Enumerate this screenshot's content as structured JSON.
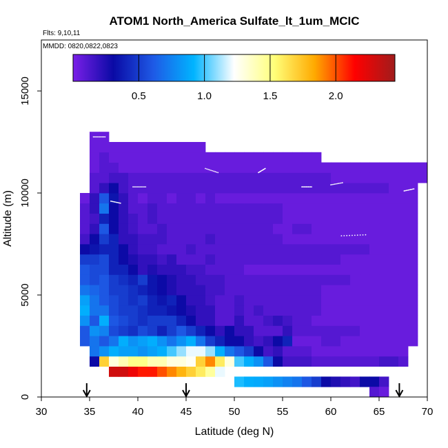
{
  "chart_data": {
    "type": "heatmap",
    "title": "ATOM1 North_America Sulfate_lt_1um_MCIC",
    "flights_note": "Flts: 9,10,11",
    "date_note": "MMDD: 0820,0822,0823",
    "xlabel": "Latitude (deg N)",
    "ylabel": "Altitude (m)",
    "xlim": [
      30,
      70
    ],
    "ylim": [
      0,
      17500
    ],
    "x_ticks": [
      "30",
      "35",
      "40",
      "45",
      "50",
      "55",
      "60",
      "65",
      "70"
    ],
    "y_ticks": [
      "0",
      "5000",
      "10000",
      "15000"
    ],
    "colorbar": {
      "range": [
        0,
        2.45
      ],
      "ticks": [
        "0.5",
        "1.0",
        "1.5",
        "2.0"
      ],
      "colors": [
        "#7a1fe8",
        "#0a0aa5",
        "#1e5ae6",
        "#00b4ff",
        "#ffffff",
        "#ffff7a",
        "#ffaa00",
        "#ff0000",
        "#a01c1c"
      ]
    },
    "arrows_latitude": [
      34.7,
      45,
      67.1
    ],
    "cell_size": {
      "lat_deg": 1,
      "alt_m": 500
    },
    "rows": [
      {
        "alt_min": 1000,
        "lat_start": 37,
        "values": [
          2.3,
          2.3,
          2.2,
          2.1,
          2.1,
          2.0,
          1.9,
          1.8,
          1.7,
          1.6,
          1.45,
          1.2
        ]
      },
      {
        "alt_min": 500,
        "lat_start": 50,
        "values": [
          0.95,
          0.9,
          0.88,
          0.85,
          0.8,
          0.75,
          0.7,
          0.6,
          0.5,
          0.3,
          0.25,
          0.2,
          0.15,
          0.3,
          0.3,
          0.15
        ]
      },
      {
        "alt_min": 0,
        "lat_start": 64,
        "values": [
          0.1,
          0.05
        ]
      },
      {
        "alt_min": 1500,
        "lat_start": 35,
        "values": [
          0.3,
          1.7,
          1.3,
          1.4,
          1.5,
          1.5,
          1.4,
          1.4,
          1.3,
          1.3,
          1.25,
          1.7,
          1.9,
          1.6,
          1.3,
          1.0,
          0.9,
          0.8,
          0.6,
          0.3,
          0.15,
          0.15,
          0.15,
          0.1,
          0.1,
          0.1,
          0.1,
          0.1,
          0.1,
          0.1,
          0.15,
          0.15,
          0.1
        ]
      },
      {
        "alt_min": 2000,
        "lat_start": 35,
        "values": [
          0.7,
          0.8,
          0.9,
          0.85,
          0.85,
          0.8,
          0.85,
          0.9,
          1.0,
          1.1,
          1.2,
          1.2,
          1.1,
          0.9,
          0.7,
          0.6,
          0.5,
          0.3,
          0.15,
          0.2,
          0.1,
          0.1,
          0.1,
          0.05,
          0.05,
          0.05,
          0.05,
          0.05,
          0.05,
          0.05,
          0.05,
          0.05,
          0.05
        ]
      },
      {
        "alt_min": 2500,
        "lat_start": 34,
        "values": [
          0.6,
          0.7,
          0.6,
          0.7,
          0.9,
          0.8,
          0.85,
          0.9,
          0.8,
          0.7,
          0.8,
          0.9,
          0.7,
          0.5,
          0.4,
          0.3,
          0.3,
          0.2,
          0.15,
          0.2,
          0.3,
          0.4,
          0.05,
          0.05,
          0.05,
          0.1,
          0.1,
          0.05,
          0.05,
          0.05,
          0.05,
          0.05,
          0.05,
          0.05,
          0.05
        ]
      },
      {
        "alt_min": 3000,
        "lat_start": 34,
        "values": [
          0.6,
          0.8,
          0.75,
          0.55,
          0.5,
          0.45,
          0.55,
          0.5,
          0.4,
          0.5,
          0.6,
          0.5,
          0.4,
          0.3,
          0.2,
          0.3,
          0.2,
          0.2,
          0.1,
          0.1,
          0.1,
          0.2,
          0.1,
          0.1,
          0.1,
          0.1,
          0.1,
          0.1,
          0.1,
          0.05,
          0.05,
          0.05,
          0.05,
          0.05,
          0.05
        ]
      },
      {
        "alt_min": 3500,
        "lat_start": 34,
        "values": [
          0.8,
          0.6,
          0.9,
          0.6,
          0.55,
          0.5,
          0.45,
          0.5,
          0.5,
          0.5,
          0.4,
          0.3,
          0.2,
          0.2,
          0.1,
          0.1,
          0.2,
          0.1,
          0.1,
          0.15,
          0.2,
          0.15,
          0.1,
          0.1,
          0.05,
          0.05,
          0.05,
          0.05,
          0.05,
          0.05,
          0.05,
          0.05,
          0.05,
          0.05,
          0.05
        ]
      },
      {
        "alt_min": 4000,
        "lat_start": 34,
        "values": [
          0.9,
          0.7,
          0.7,
          0.55,
          0.5,
          0.5,
          0.45,
          0.4,
          0.4,
          0.35,
          0.3,
          0.25,
          0.2,
          0.2,
          0.1,
          0.1,
          0.15,
          0.1,
          0.15,
          0.1,
          0.1,
          0.1,
          0.1,
          0.1,
          0.1,
          0.05,
          0.05,
          0.05,
          0.05,
          0.05,
          0.05,
          0.05,
          0.05,
          0.05,
          0.05
        ]
      },
      {
        "alt_min": 4500,
        "lat_start": 34,
        "values": [
          0.85,
          0.7,
          0.6,
          0.55,
          0.5,
          0.45,
          0.5,
          0.4,
          0.35,
          0.4,
          0.3,
          0.2,
          0.2,
          0.15,
          0.1,
          0.1,
          0.15,
          0.1,
          0.1,
          0.1,
          0.1,
          0.1,
          0.1,
          0.1,
          0.1,
          0.05,
          0.05,
          0.05,
          0.05,
          0.05,
          0.05,
          0.05,
          0.05,
          0.05,
          0.05
        ]
      },
      {
        "alt_min": 5000,
        "lat_start": 34,
        "values": [
          0.7,
          0.65,
          0.6,
          0.5,
          0.5,
          0.45,
          0.4,
          0.35,
          0.3,
          0.25,
          0.2,
          0.2,
          0.2,
          0.15,
          0.15,
          0.1,
          0.1,
          0.1,
          0.1,
          0.1,
          0.1,
          0.1,
          0.1,
          0.1,
          0.1,
          0.05,
          0.05,
          0.05,
          0.05,
          0.05,
          0.05,
          0.05,
          0.05,
          0.05,
          0.05
        ]
      },
      {
        "alt_min": 5500,
        "lat_start": 34,
        "values": [
          0.6,
          0.55,
          0.6,
          0.5,
          0.45,
          0.4,
          0.5,
          0.35,
          0.3,
          0.25,
          0.2,
          0.2,
          0.15,
          0.15,
          0.15,
          0.1,
          0.1,
          0.1,
          0.1,
          0.1,
          0.1,
          0.1,
          0.1,
          0.1,
          0.1,
          0.1,
          0.1,
          0.1,
          0.05,
          0.05,
          0.05,
          0.05,
          0.05,
          0.05,
          0.05
        ]
      },
      {
        "alt_min": 6000,
        "lat_start": 34,
        "values": [
          0.6,
          0.55,
          0.55,
          0.4,
          0.4,
          0.3,
          0.2,
          0.25,
          0.2,
          0.2,
          0.2,
          0.15,
          0.15,
          0.1,
          0.1,
          0.1,
          0.1,
          0.05,
          0.05,
          0.05,
          0.05,
          0.05,
          0.05,
          0.05,
          0.05,
          0.05,
          0.05,
          0.05,
          0.05,
          0.05,
          0.05,
          0.05,
          0.05,
          0.05,
          0.05
        ]
      },
      {
        "alt_min": 6500,
        "lat_start": 34,
        "values": [
          0.5,
          0.5,
          0.55,
          0.4,
          0.3,
          0.25,
          0.2,
          0.2,
          0.15,
          0.2,
          0.1,
          0.1,
          0.1,
          0.15,
          0.1,
          0.1,
          0.1,
          0.1,
          0.1,
          0.1,
          0.1,
          0.1,
          0.1,
          0.1,
          0.1,
          0.1,
          0.1,
          0.05,
          0.05,
          0.05,
          0.05,
          0.05,
          0.05,
          0.05,
          0.05
        ]
      },
      {
        "alt_min": 7000,
        "lat_start": 34,
        "values": [
          0.3,
          0.35,
          0.4,
          0.4,
          0.3,
          0.2,
          0.15,
          0.15,
          0.1,
          0.1,
          0.1,
          0.15,
          0.1,
          0.1,
          0.1,
          0.1,
          0.1,
          0.1,
          0.1,
          0.1,
          0.1,
          0.1,
          0.1,
          0.1,
          0.1,
          0.1,
          0.1,
          0.1,
          0.1,
          0.1,
          0.05,
          0.05,
          0.05,
          0.05,
          0.05
        ]
      },
      {
        "alt_min": 7500,
        "lat_start": 34,
        "values": [
          0.15,
          0.3,
          0.5,
          0.4,
          0.2,
          0.2,
          0.15,
          0.15,
          0.15,
          0.1,
          0.1,
          0.1,
          0.1,
          0.15,
          0.1,
          0.1,
          0.1,
          0.1,
          0.1,
          0.1,
          0.1,
          0.05,
          0.05,
          0.05,
          0.05,
          0.05,
          0.05,
          0.05,
          0.05,
          0.05,
          0.05,
          0.05,
          0.05,
          0.05,
          0.05
        ]
      },
      {
        "alt_min": 8000,
        "lat_start": 34,
        "values": [
          0.1,
          0.2,
          0.6,
          0.3,
          0.2,
          0.15,
          0.1,
          0.1,
          0.15,
          0.1,
          0.1,
          0.1,
          0.1,
          0.1,
          0.1,
          0.1,
          0.1,
          0.1,
          0.1,
          0.1,
          0.05,
          0.05,
          0.1,
          0.1,
          0.05,
          0.05,
          0.05,
          0.05,
          0.05,
          0.05,
          0.05,
          0.05,
          0.05,
          0.05,
          0.05
        ]
      },
      {
        "alt_min": 8500,
        "lat_start": 34,
        "values": [
          0.1,
          0.15,
          0.4,
          0.3,
          0.2,
          0.15,
          0.1,
          0.15,
          0.1,
          0.1,
          0.1,
          0.1,
          0.1,
          0.1,
          0.1,
          0.1,
          0.1,
          0.1,
          0.1,
          0.1,
          0.1,
          0.05,
          0.05,
          0.05,
          0.05,
          0.05,
          0.05,
          0.05,
          0.05,
          0.05,
          0.05,
          0.05,
          0.05,
          0.05,
          0.05
        ]
      },
      {
        "alt_min": 9000,
        "lat_start": 34,
        "values": [
          0.1,
          0.2,
          0.7,
          0.3,
          0.2,
          0.1,
          0.1,
          0.15,
          0.1,
          0.1,
          0.1,
          0.1,
          0.1,
          0.1,
          0.1,
          0.1,
          0.1,
          0.1,
          0.1,
          0.1,
          0.1,
          0.05,
          0.05,
          0.05,
          0.05,
          0.05,
          0.05,
          0.05,
          0.05,
          0.05,
          0.05,
          0.05,
          0.05,
          0.05,
          0.05
        ]
      },
      {
        "alt_min": 9500,
        "lat_start": 34,
        "values": [
          0.05,
          0.2,
          0.6,
          0.35,
          0.2,
          0.1,
          0.05,
          0.1,
          0.1,
          0.05,
          0.1,
          0.1,
          0.05,
          0.1,
          0.05,
          0.05,
          0.05,
          0.05,
          0.05,
          0.05,
          0.05,
          0.05,
          0.05,
          0.05,
          0.05,
          0.05,
          0.05,
          0.05,
          0.05,
          0.05,
          0.05,
          0.05,
          0.05,
          0.05,
          0.05
        ]
      },
      {
        "alt_min": 10000,
        "lat_start": 35,
        "values": [
          0.1,
          0.2,
          0.3,
          0.15,
          0.1,
          0.1,
          0.1,
          0.1,
          0.1,
          0.1,
          0.1,
          0.1,
          0.1,
          0.1,
          0.1,
          0.1,
          0.1,
          0.1,
          0.1,
          0.1,
          0.1,
          0.1,
          0.1,
          0.1,
          0.1,
          0.1,
          0.1,
          0.1,
          0.1,
          0.1,
          0.1,
          0.05,
          0.05,
          0.05
        ]
      },
      {
        "alt_min": 10500,
        "lat_start": 35,
        "values": [
          0.1,
          0.1,
          0.15,
          0.15,
          0.1,
          0.1,
          0.1,
          0.1,
          0.1,
          0.1,
          0.1,
          0.1,
          0.1,
          0.1,
          0.1,
          0.1,
          0.1,
          0.1,
          0.1,
          0.1,
          0.1,
          0.1,
          0.1,
          0.1,
          0.1,
          0.05,
          0.05,
          0.05,
          0.05,
          0.05,
          0.05,
          0.05,
          0.05,
          0.05,
          0.05
        ]
      },
      {
        "alt_min": 11000,
        "lat_start": 35,
        "values": [
          0.05,
          0.1,
          0.1,
          0.05,
          0.05,
          0.05,
          0.05,
          0.05,
          0.05,
          0.05,
          0.05,
          0.05,
          0.05,
          0.05,
          0.05,
          0.05,
          0.05,
          0.05,
          0.05,
          0.05,
          0.05,
          0.05,
          0.05,
          0.05,
          0.05,
          0.05,
          0.05,
          0.05,
          0.05,
          0.05,
          0.05,
          0.05,
          0.05,
          0.05,
          0.05
        ]
      },
      {
        "alt_min": 11500,
        "lat_start": 35,
        "values": [
          0.05,
          0.1,
          0.05,
          0.05,
          0.05,
          0.05,
          0.05,
          0.05,
          0.05,
          0.05,
          0.05,
          0.05,
          0.05,
          0.05,
          0.05,
          0.05,
          0.05,
          0.05,
          0.05,
          0.05,
          0.05,
          0.05,
          0.05,
          0.05
        ]
      },
      {
        "alt_min": 12000,
        "lat_start": 35,
        "values": [
          0.05,
          0.05,
          0.05,
          0.05,
          0.05,
          0.05,
          0.05,
          0.05,
          0.05,
          0.05,
          0.05,
          0.05
        ]
      },
      {
        "alt_min": 12500,
        "lat_start": 35,
        "values": [
          0.05,
          0.05
        ]
      }
    ],
    "track_segments": [
      {
        "lat": [
          35.4,
          36.6
        ],
        "alt": [
          12750,
          12750
        ]
      },
      {
        "lat": [
          47.0,
          48.3
        ],
        "alt": [
          11200,
          11000
        ]
      },
      {
        "lat": [
          37.2,
          38.2
        ],
        "alt": [
          9600,
          9500
        ]
      },
      {
        "lat": [
          39.5,
          40.8
        ],
        "alt": [
          10300,
          10300
        ]
      },
      {
        "lat": [
          57.0,
          58.0
        ],
        "alt": [
          10300,
          10300
        ]
      },
      {
        "lat": [
          60.0,
          61.2
        ],
        "alt": [
          10400,
          10500
        ]
      },
      {
        "lat": [
          61.1,
          63.6
        ],
        "alt": [
          7900,
          7950
        ]
      },
      {
        "lat": [
          67.6,
          68.6
        ],
        "alt": [
          10100,
          10200
        ]
      },
      {
        "lat": [
          52.5,
          53.2
        ],
        "alt": [
          11000,
          11200
        ]
      }
    ]
  }
}
